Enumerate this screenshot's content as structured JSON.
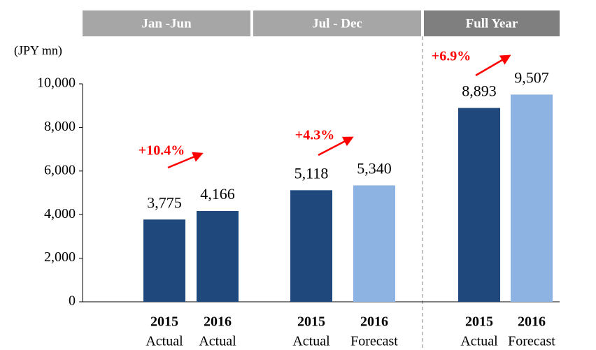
{
  "chart_data": {
    "type": "bar",
    "unit_label": "(JPY mn)",
    "ylim": [
      0,
      10000
    ],
    "yticks": [
      0,
      {
        "value": 2000,
        "label": "2,000"
      },
      {
        "value": 4000,
        "label": "4,000"
      },
      {
        "value": 6000,
        "label": "6,000"
      },
      {
        "value": 8000,
        "label": "8,000"
      },
      {
        "value": 10000,
        "label": "10,000"
      }
    ],
    "groups": [
      {
        "name": "Jan -Jun",
        "years": [
          "2015",
          "2016"
        ],
        "kinds": [
          "Actual",
          "Actual"
        ],
        "values": [
          3775,
          4166
        ],
        "value_labels": [
          "3,775",
          "4,166"
        ],
        "colors": [
          "#1f497d",
          "#1f497d"
        ],
        "growth": "+10.4%"
      },
      {
        "name": "Jul - Dec",
        "years": [
          "2015",
          "2016"
        ],
        "kinds": [
          "Actual",
          "Forecast"
        ],
        "values": [
          5118,
          5340
        ],
        "value_labels": [
          "5,118",
          "5,340"
        ],
        "colors": [
          "#1f497d",
          "#8db3e2"
        ],
        "growth": "+4.3%"
      },
      {
        "name": "Full Year",
        "years": [
          "2015",
          "2016"
        ],
        "kinds": [
          "Actual",
          "Forecast"
        ],
        "values": [
          8893,
          9507
        ],
        "value_labels": [
          "8,893",
          "9,507"
        ],
        "colors": [
          "#1f497d",
          "#8db3e2"
        ],
        "growth": "+6.9%"
      }
    ]
  }
}
